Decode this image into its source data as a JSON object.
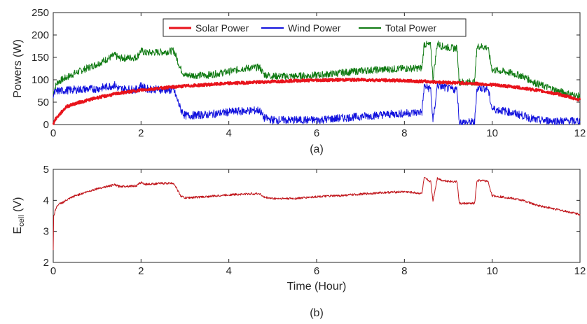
{
  "chart_data": [
    {
      "type": "line",
      "caption": "(a)",
      "xlabel": "",
      "ylabel": "Powers (W)",
      "xlim": [
        0,
        12
      ],
      "ylim": [
        0,
        250
      ],
      "xticks": [
        "0",
        "2",
        "4",
        "6",
        "8",
        "10",
        "12"
      ],
      "yticks": [
        "0",
        "50",
        "100",
        "150",
        "200",
        "250"
      ],
      "legend_position": "top-center",
      "grid": false,
      "series": [
        {
          "name": "Solar Power",
          "color": "#e8131b",
          "x": [
            0,
            0.05,
            0.3,
            0.5,
            1,
            1.5,
            2,
            2.5,
            3,
            3.5,
            4,
            4.5,
            5,
            5.5,
            6,
            6.5,
            7,
            7.5,
            8,
            8.5,
            9,
            9.5,
            10,
            10.5,
            11,
            11.5,
            12
          ],
          "y": [
            2,
            12,
            40,
            47,
            60,
            70,
            77,
            82,
            86,
            89,
            92,
            94,
            96,
            98,
            99,
            100,
            100,
            99,
            98,
            96,
            94,
            92,
            89,
            84,
            77,
            68,
            55
          ]
        },
        {
          "name": "Wind Power",
          "color": "#1111dd",
          "x": [
            0,
            0.1,
            0.5,
            1,
            1.4,
            1.5,
            1.9,
            2.0,
            2.1,
            2.5,
            2.75,
            2.9,
            3.0,
            3.5,
            4.0,
            4.3,
            4.7,
            4.8,
            5.0,
            5.5,
            6.0,
            6.5,
            7.0,
            7.5,
            8.0,
            8.4,
            8.45,
            8.6,
            8.65,
            8.75,
            8.85,
            9.0,
            9.2,
            9.25,
            9.6,
            9.65,
            9.7,
            9.9,
            10.0,
            10.3,
            10.7,
            11.0,
            11.5,
            12.0
          ],
          "y": [
            68,
            75,
            78,
            80,
            88,
            80,
            78,
            88,
            80,
            78,
            76,
            35,
            20,
            22,
            28,
            30,
            32,
            15,
            10,
            10,
            10,
            14,
            18,
            22,
            25,
            28,
            85,
            80,
            5,
            88,
            85,
            80,
            78,
            5,
            5,
            80,
            82,
            80,
            35,
            30,
            20,
            10,
            8,
            8
          ]
        },
        {
          "name": "Total Power",
          "color": "#0f7a12",
          "x": [
            0,
            0.05,
            0.1,
            0.5,
            1.0,
            1.4,
            1.5,
            1.9,
            2.0,
            2.1,
            2.5,
            2.75,
            2.9,
            3.0,
            3.5,
            4.0,
            4.3,
            4.7,
            4.8,
            5.0,
            5.5,
            6.0,
            6.5,
            7.0,
            7.5,
            8.0,
            8.4,
            8.45,
            8.6,
            8.65,
            8.75,
            8.85,
            9.0,
            9.2,
            9.25,
            9.6,
            9.65,
            9.7,
            9.9,
            10.0,
            10.3,
            10.7,
            11.0,
            11.5,
            12.0
          ],
          "y": [
            70,
            85,
            95,
            115,
            135,
            155,
            148,
            150,
            165,
            160,
            162,
            165,
            125,
            110,
            110,
            118,
            125,
            128,
            112,
            108,
            108,
            110,
            115,
            120,
            123,
            125,
            126,
            180,
            176,
            100,
            182,
            175,
            172,
            170,
            95,
            95,
            172,
            175,
            172,
            122,
            118,
            108,
            92,
            75,
            62
          ]
        }
      ]
    },
    {
      "type": "line",
      "caption": "(b)",
      "xlabel": "Time (Hour)",
      "ylabel_main": "E",
      "ylabel_sub": "cell",
      "ylabel_unit": " (V)",
      "xlim": [
        0,
        12
      ],
      "ylim": [
        2,
        5
      ],
      "xticks": [
        "0",
        "2",
        "4",
        "6",
        "8",
        "10",
        "12"
      ],
      "yticks": [
        "2",
        "3",
        "4",
        "5"
      ],
      "grid": false,
      "series": [
        {
          "color": "#c0141a",
          "x": [
            0,
            0.01,
            0.05,
            0.1,
            0.3,
            0.5,
            1.0,
            1.4,
            1.5,
            1.9,
            2.0,
            2.1,
            2.5,
            2.75,
            2.9,
            3.0,
            3.5,
            4.0,
            4.3,
            4.7,
            4.8,
            5.0,
            5.5,
            6.0,
            6.5,
            7.0,
            7.5,
            8.0,
            8.4,
            8.45,
            8.6,
            8.65,
            8.75,
            8.85,
            9.0,
            9.2,
            9.25,
            9.6,
            9.65,
            9.7,
            9.9,
            10.0,
            10.3,
            10.7,
            11.0,
            11.5,
            12.0
          ],
          "y": [
            2.4,
            3.5,
            3.7,
            3.85,
            4.0,
            4.15,
            4.38,
            4.5,
            4.45,
            4.47,
            4.58,
            4.52,
            4.55,
            4.55,
            4.15,
            4.08,
            4.12,
            4.18,
            4.2,
            4.22,
            4.1,
            4.06,
            4.06,
            4.12,
            4.15,
            4.2,
            4.25,
            4.28,
            4.22,
            4.72,
            4.6,
            3.98,
            4.72,
            4.65,
            4.62,
            4.6,
            3.9,
            3.9,
            4.6,
            4.64,
            4.62,
            4.15,
            4.1,
            4.0,
            3.85,
            3.7,
            3.55
          ]
        }
      ]
    }
  ]
}
